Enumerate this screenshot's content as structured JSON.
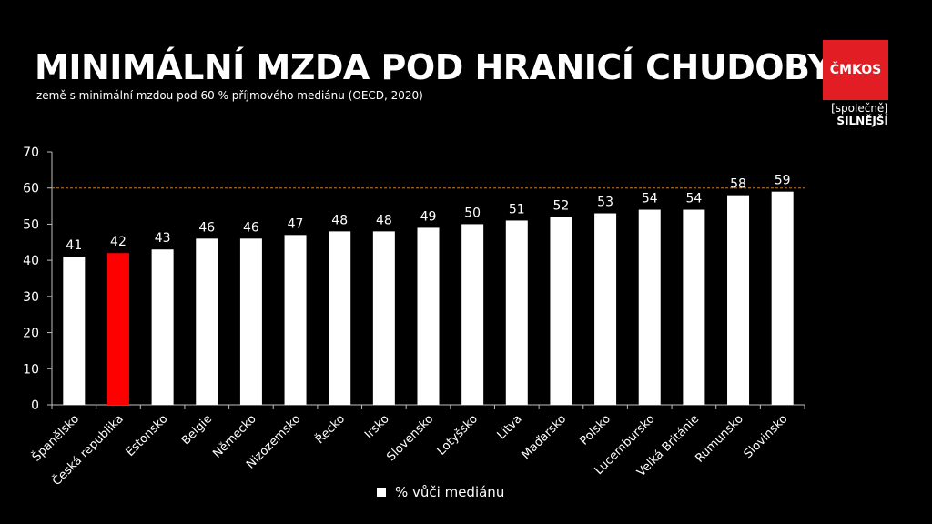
{
  "header": {
    "title": "MINIMÁLNÍ MZDA POD HRANICÍ CHUDOBY",
    "subtitle": "země s minimální mzdou pod 60 % příjmového mediánu (OECD, 2020)"
  },
  "logo": {
    "name": "ČMKOS",
    "tagline": "[společně]",
    "tagline_bold": "SILNĚJŠÍ"
  },
  "chart_data": {
    "type": "bar",
    "categories": [
      "Španělsko",
      "Česká republika",
      "Estonsko",
      "Belgie",
      "Německo",
      "Nizozemsko",
      "Řecko",
      "Irsko",
      "Slovensko",
      "Lotyšsko",
      "Litva",
      "Maďarsko",
      "Polsko",
      "Lucembursko",
      "Velká Británie",
      "Rumunsko",
      "Slovinsko"
    ],
    "series": [
      {
        "name": "% vůči mediánu",
        "values": [
          41,
          42,
          43,
          46,
          46,
          47,
          48,
          48,
          49,
          50,
          51,
          52,
          53,
          54,
          54,
          58,
          59
        ]
      }
    ],
    "highlight_index": 1,
    "bar_color": "#ffffff",
    "highlight_color": "#ff0000",
    "reference_line": {
      "value": 60,
      "color": "#c87a2c"
    },
    "ylim": [
      0,
      70
    ],
    "yticks": [
      0,
      10,
      20,
      30,
      40,
      50,
      60,
      70
    ],
    "legend_position": "bottom",
    "grid": false
  }
}
